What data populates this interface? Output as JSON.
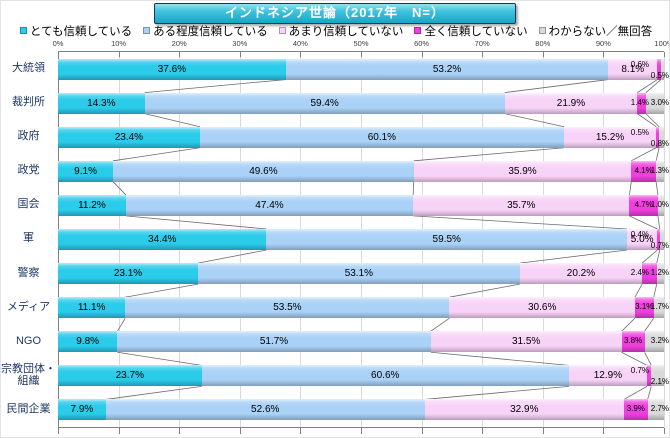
{
  "title": "インドネシア世論（2017年　N=）",
  "legend": [
    {
      "label": "とても信頼している",
      "color": "#2bcbea"
    },
    {
      "label": "ある程度信頼している",
      "color": "#aad1f6"
    },
    {
      "label": "あまり信頼していない",
      "color": "#f8d3f8"
    },
    {
      "label": "全く信頼していない",
      "color": "#ef3fde"
    },
    {
      "label": "わからない／無回答",
      "color": "#d9d9d9"
    }
  ],
  "axis": {
    "ticks": [
      "0%",
      "10%",
      "20%",
      "30%",
      "40%",
      "50%",
      "60%",
      "70%",
      "80%",
      "90%",
      "100%"
    ],
    "min": 0,
    "max": 100
  },
  "chart_data": {
    "type": "bar",
    "stacked": true,
    "orientation": "horizontal",
    "title": "インドネシア世論（2017年　N=）",
    "unit": "%",
    "xlim": [
      0,
      100
    ],
    "grid": true,
    "legend_position": "top",
    "categories": [
      "大統領",
      "裁判所",
      "政府",
      "政党",
      "国会",
      "軍",
      "警察",
      "メディア",
      "NGO",
      "宗教団体・組織",
      "民間企業"
    ],
    "series": [
      {
        "name": "とても信頼している",
        "color": "#2bcbea",
        "values": [
          37.6,
          14.3,
          23.4,
          9.1,
          11.2,
          34.4,
          23.1,
          11.1,
          9.8,
          23.7,
          7.9
        ]
      },
      {
        "name": "ある程度信頼している",
        "color": "#aad1f6",
        "values": [
          53.2,
          59.4,
          60.1,
          49.6,
          47.4,
          59.5,
          53.1,
          53.5,
          51.7,
          60.6,
          52.6
        ]
      },
      {
        "name": "あまり信頼していない",
        "color": "#f8d3f8",
        "values": [
          8.1,
          21.9,
          15.2,
          35.9,
          35.7,
          5.0,
          20.2,
          30.6,
          31.5,
          12.9,
          32.9
        ]
      },
      {
        "name": "全く信頼していない",
        "color": "#ef3fde",
        "values": [
          0.6,
          1.4,
          0.5,
          4.1,
          4.7,
          0.4,
          2.4,
          3.1,
          3.8,
          0.7,
          3.9
        ]
      },
      {
        "name": "わからない／無回答",
        "color": "#d9d9d9",
        "values": [
          0.5,
          3.0,
          0.8,
          1.3,
          1.0,
          0.7,
          1.2,
          1.7,
          3.2,
          2.1,
          2.7
        ]
      }
    ]
  }
}
